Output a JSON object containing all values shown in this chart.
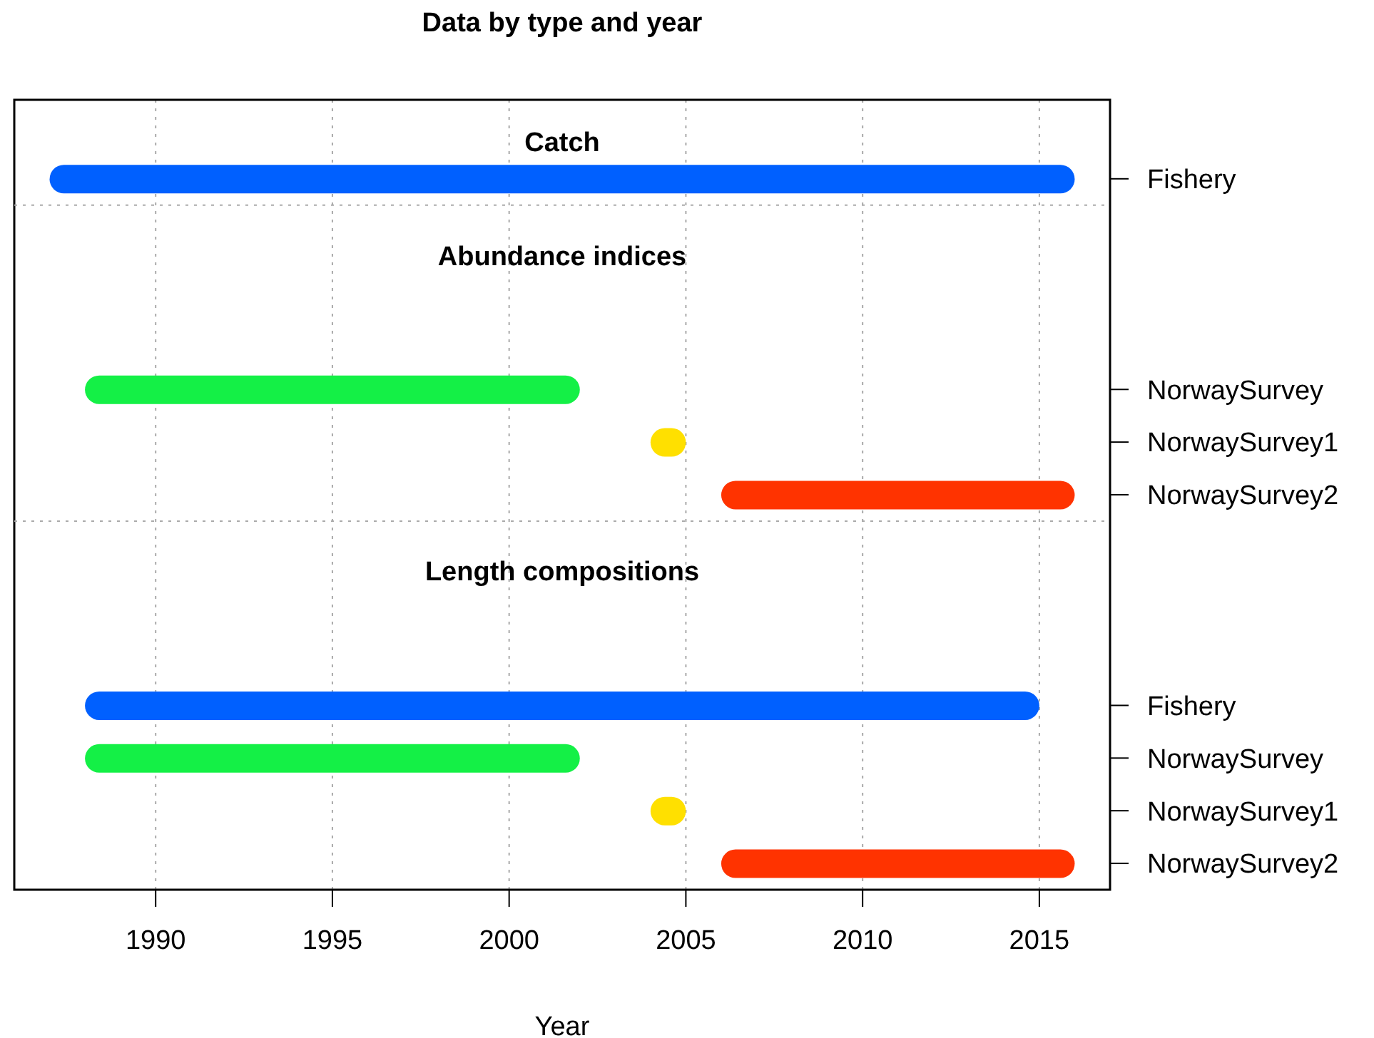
{
  "chart_data": {
    "type": "bar",
    "orientation": "horizontal",
    "title": "Data by type and year",
    "xlabel": "Year",
    "annotations": [
      "Catch",
      "Abundance indices",
      "Length compositions"
    ],
    "categories": [
      null,
      "Fishery",
      null,
      null,
      null,
      "NorwaySurvey",
      "NorwaySurvey1",
      "NorwaySurvey2",
      null,
      null,
      null,
      "Fishery",
      "NorwaySurvey",
      "NorwaySurvey1",
      "NorwaySurvey2"
    ],
    "base": [
      null,
      1987,
      null,
      null,
      null,
      1988,
      2004,
      2006,
      null,
      null,
      null,
      1988,
      1988,
      2004,
      2006
    ],
    "values": [
      null,
      29,
      null,
      null,
      null,
      14,
      1,
      10,
      null,
      null,
      null,
      27,
      14,
      1,
      10
    ],
    "colors": [
      null,
      "#0060ff",
      null,
      null,
      null,
      "#14f046",
      "#ffe000",
      "#ff3300",
      null,
      null,
      null,
      "#0060ff",
      "#14f046",
      "#ffe000",
      "#ff3300"
    ],
    "xlim": [
      1986,
      2017
    ],
    "xticks": [
      1990,
      1995,
      2000,
      2005,
      2010,
      2015
    ],
    "grid": "x",
    "legend": false
  }
}
